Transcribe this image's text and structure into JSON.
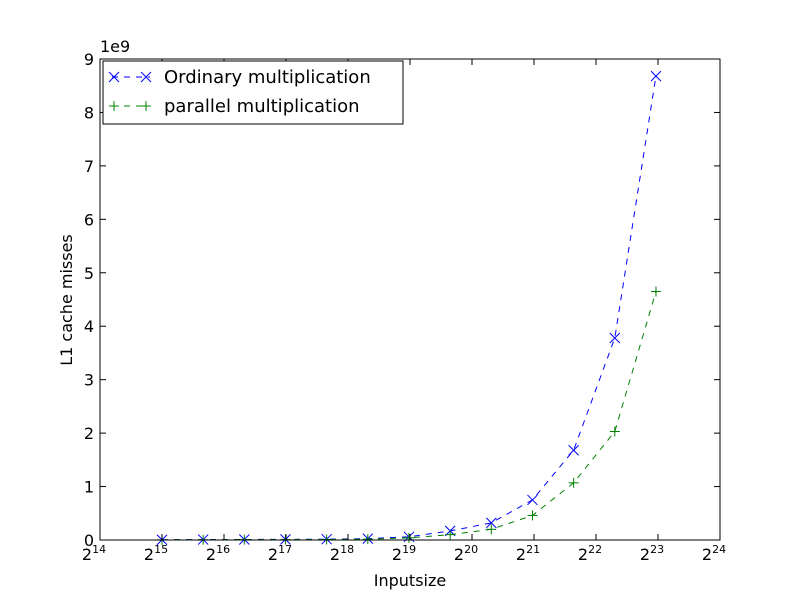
{
  "chart_data": {
    "type": "line",
    "xlabel": "Inputsize",
    "ylabel": "L1 cache misses",
    "y_offset_label": "1e9",
    "x_scale": "log2",
    "xlim": [
      16384,
      16777216
    ],
    "ylim": [
      0,
      9
    ],
    "x_ticks": [
      {
        "base": "2",
        "exp": "14"
      },
      {
        "base": "2",
        "exp": "15"
      },
      {
        "base": "2",
        "exp": "16"
      },
      {
        "base": "2",
        "exp": "17"
      },
      {
        "base": "2",
        "exp": "18"
      },
      {
        "base": "2",
        "exp": "19"
      },
      {
        "base": "2",
        "exp": "20"
      },
      {
        "base": "2",
        "exp": "21"
      },
      {
        "base": "2",
        "exp": "22"
      },
      {
        "base": "2",
        "exp": "23"
      },
      {
        "base": "2",
        "exp": "24"
      }
    ],
    "y_ticks": [
      "0",
      "1",
      "2",
      "3",
      "4",
      "5",
      "6",
      "7",
      "8",
      "9"
    ],
    "legend_position": "top-left",
    "grid": false,
    "series": [
      {
        "name": "Ordinary multiplication",
        "color": "#0000ff",
        "marker": "x",
        "linestyle": "dashed",
        "x": [
          32768,
          51917,
          82248,
          130288,
          206438,
          327124,
          518308,
          821317,
          1301248,
          2061584,
          3266560,
          5175424,
          8200192
        ],
        "y": [
          0.005,
          0.008,
          0.01,
          0.012,
          0.015,
          0.025,
          0.06,
          0.17,
          0.32,
          0.75,
          1.68,
          3.78,
          8.68
        ]
      },
      {
        "name": "parallel multiplication",
        "color": "#008000",
        "marker": "+",
        "linestyle": "dashed",
        "x": [
          32768,
          51917,
          82248,
          130288,
          206438,
          327124,
          518308,
          821317,
          1301248,
          2061584,
          3266560,
          5175424,
          8200192
        ],
        "y": [
          0.003,
          0.005,
          0.007,
          0.008,
          0.01,
          0.015,
          0.04,
          0.1,
          0.2,
          0.46,
          1.07,
          2.03,
          4.65
        ]
      }
    ]
  }
}
